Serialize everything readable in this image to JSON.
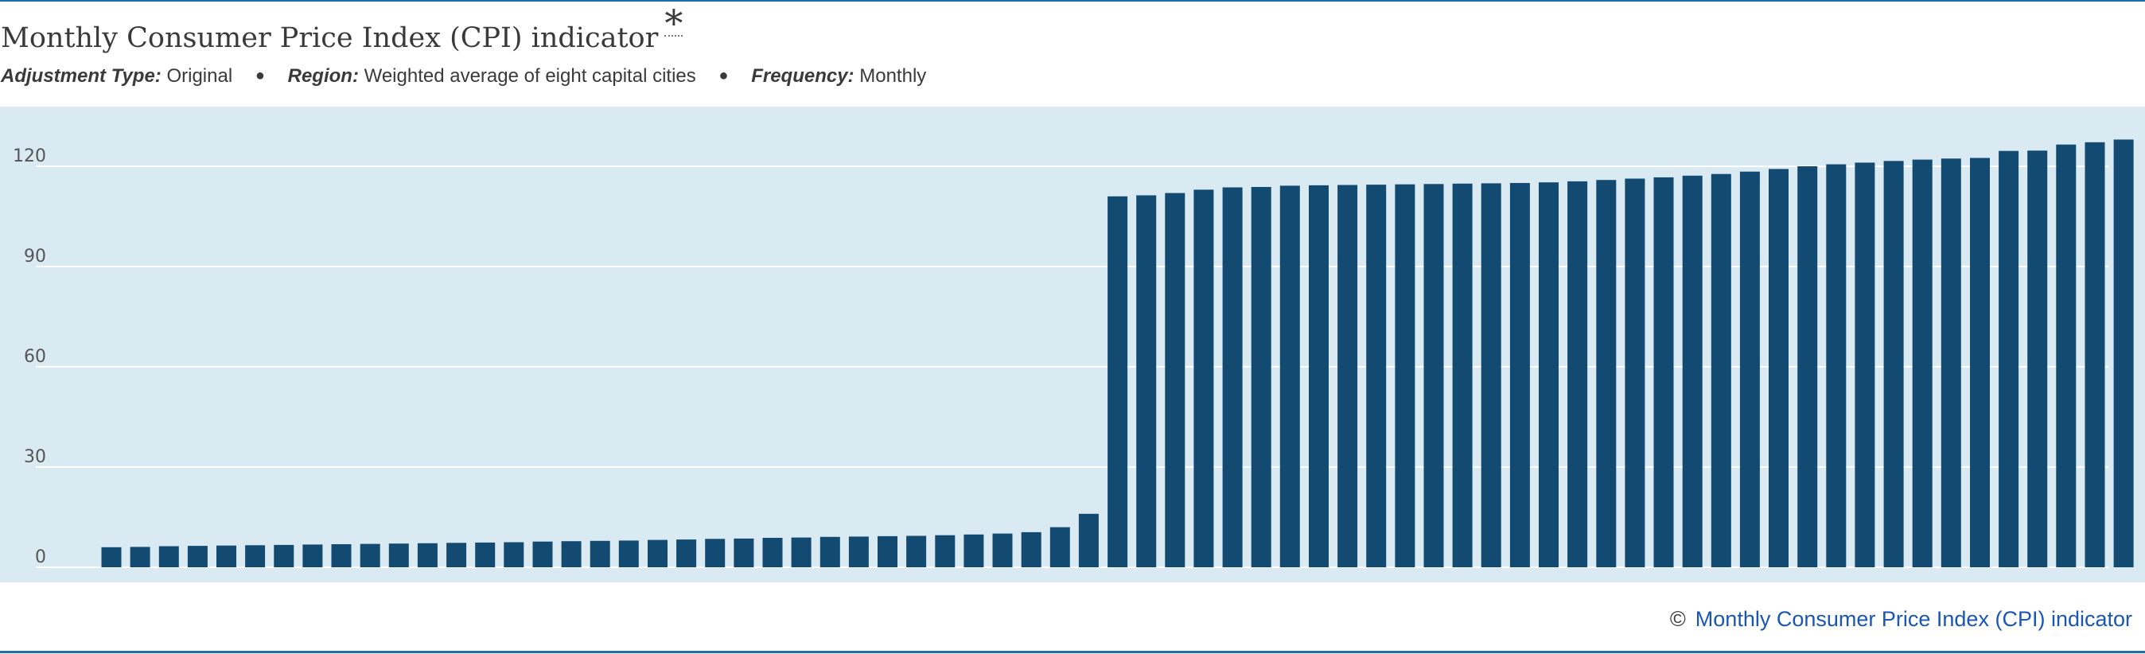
{
  "header": {
    "title": "Monthly Consumer Price Index (CPI) indicator",
    "asterisk": "*"
  },
  "meta": {
    "adjustment_label": "Adjustment Type:",
    "adjustment_value": "Original",
    "region_label": "Region:",
    "region_value": "Weighted average of eight capital cities",
    "frequency_label": "Frequency:",
    "frequency_value": "Monthly",
    "separator": "●"
  },
  "footer": {
    "copyright": "©",
    "link_text": "Monthly Consumer Price Index (CPI) indicator"
  },
  "colors": {
    "bar": "#134a72",
    "plot_background": "#d9eaf3",
    "gridline": "#ffffff",
    "tick_text": "#555555",
    "accent_rule": "#1b6fae",
    "link": "#1a56b5"
  },
  "chart_data": {
    "type": "bar",
    "title": "Monthly Consumer Price Index (CPI) indicator",
    "xlabel": "",
    "ylabel": "",
    "ylim": [
      0,
      130
    ],
    "yticks": [
      0,
      30,
      60,
      90,
      120
    ],
    "grid": true,
    "legend": "none",
    "values": [
      6.0,
      6.1,
      6.3,
      6.4,
      6.5,
      6.6,
      6.7,
      6.8,
      6.9,
      7.0,
      7.1,
      7.2,
      7.3,
      7.4,
      7.5,
      7.7,
      7.8,
      7.9,
      8.0,
      8.2,
      8.3,
      8.5,
      8.6,
      8.8,
      8.9,
      9.1,
      9.2,
      9.3,
      9.4,
      9.6,
      9.8,
      10.1,
      10.5,
      12.0,
      16.0,
      111.0,
      111.3,
      112.0,
      113.0,
      113.7,
      113.8,
      114.2,
      114.3,
      114.4,
      114.5,
      114.6,
      114.7,
      114.8,
      114.9,
      115.0,
      115.2,
      115.5,
      115.9,
      116.3,
      116.7,
      117.2,
      117.7,
      118.4,
      119.2,
      120.0,
      120.6,
      121.1,
      121.6,
      122.0,
      122.3,
      122.5,
      124.6,
      124.7,
      126.5,
      127.2,
      128.0
    ]
  }
}
